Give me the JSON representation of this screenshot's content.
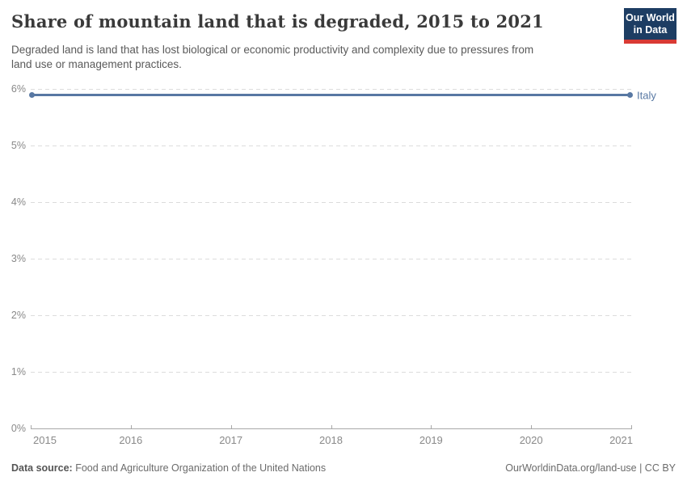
{
  "header": {
    "title": "Share of mountain land that is degraded, 2015 to 2021",
    "subtitle_line1": "Degraded land is land that has lost biological or economic productivity and complexity due to pressures from",
    "subtitle_line2": "land use or management practices.",
    "logo": {
      "line1": "Our World",
      "line2": "in Data",
      "bg_color": "#1d3d63",
      "stripe_color": "#d93a34"
    }
  },
  "chart_data": {
    "type": "line",
    "title": "Share of mountain land that is degraded, 2015 to 2021",
    "x": [
      2015,
      2016,
      2017,
      2018,
      2019,
      2020,
      2021
    ],
    "x_labels": [
      "2015",
      "2016",
      "2017",
      "2018",
      "2019",
      "2020",
      "2021"
    ],
    "series": [
      {
        "name": "Italy",
        "values": [
          5.89,
          5.89,
          5.89,
          5.89,
          5.89,
          5.89,
          5.89
        ],
        "color": "#5878a3"
      }
    ],
    "unit": "%",
    "ylim": [
      0,
      6
    ],
    "ytick_labels_top_to_bottom": [
      "6%",
      "5%",
      "4%",
      "3%",
      "2%",
      "1%",
      "0%"
    ],
    "grid": "horizontal-dashed",
    "legend_position": "end-of-line"
  },
  "footer": {
    "data_source_label": "Data source:",
    "data_source_value": "Food and Agriculture Organization of the United Nations",
    "credit": "OurWorldinData.org/land-use | CC BY"
  }
}
